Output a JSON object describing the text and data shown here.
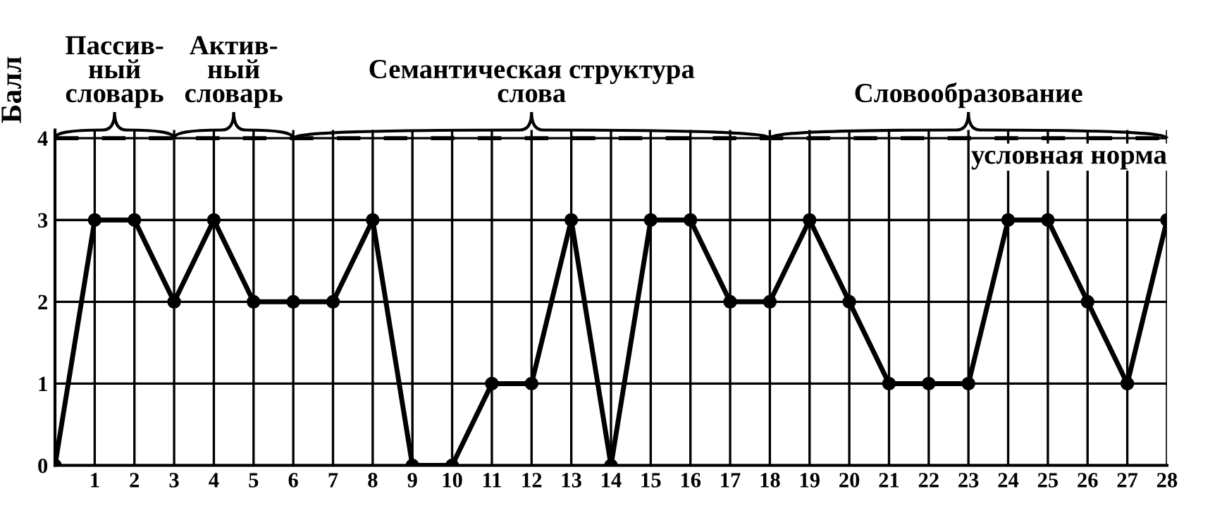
{
  "chart_data": {
    "type": "line",
    "ylabel": "Балл",
    "x": [
      0,
      1,
      2,
      3,
      4,
      5,
      6,
      7,
      8,
      9,
      10,
      11,
      12,
      13,
      14,
      15,
      16,
      17,
      18,
      19,
      20,
      21,
      22,
      23,
      24,
      25,
      26,
      27,
      28
    ],
    "series": [
      {
        "color": "#000000",
        "values": [
          0,
          3,
          3,
          2,
          3,
          2,
          2,
          2,
          3,
          0,
          0,
          1,
          1,
          3,
          0,
          3,
          3,
          2,
          2,
          3,
          2,
          1,
          1,
          1,
          3,
          3,
          2,
          1,
          3
        ]
      }
    ],
    "xlim": [
      0,
      28
    ],
    "ylim": [
      0,
      4.1
    ],
    "xticks": [
      {
        "value": 0,
        "label": null
      },
      1,
      2,
      3,
      4,
      5,
      6,
      7,
      8,
      9,
      10,
      11,
      12,
      13,
      14,
      15,
      16,
      17,
      18,
      19,
      20,
      21,
      22,
      23,
      24,
      25,
      26,
      27,
      28
    ],
    "yticks": [
      0,
      1,
      2,
      3,
      4
    ],
    "ref_lines": [
      {
        "axis": "y",
        "value": 4,
        "label": "условная норма",
        "line_style": "dashed",
        "color": "#000000"
      }
    ],
    "annotations": [
      {
        "text": "Пассив-\nный\nсловарь",
        "x": 1.5,
        "y": 4
      },
      {
        "text": "Актив-\nный\nсловарь",
        "x": 4.5,
        "y": 4
      },
      {
        "text": "Семантическая структура\nслова",
        "x": 12,
        "y": 4
      },
      {
        "text": "Словообразование",
        "x": 23,
        "y": 4
      }
    ],
    "grid": true,
    "marker": "circle",
    "line_style": "solid"
  }
}
